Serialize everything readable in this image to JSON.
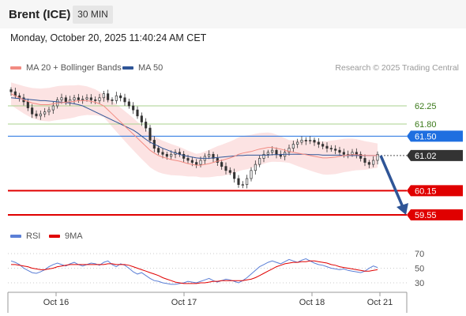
{
  "header": {
    "instrument": "Brent (ICE)",
    "timeframe": "30 MIN"
  },
  "datetime": "Monday, October 20, 2025 11:40:24 AM CET",
  "research": "Research © 2025 Trading Central",
  "legend": {
    "ma20": {
      "label": "MA 20 + Bollinger Bands",
      "color": "#f28b82"
    },
    "ma50": {
      "label": "MA 50",
      "color": "#2f5597"
    },
    "rsi": {
      "label": "RSI",
      "color": "#5b7fd6"
    },
    "ma9": {
      "label": "9MA",
      "color": "#e00000"
    }
  },
  "chart_data": [
    {
      "type": "candlestick",
      "title": "",
      "x_ticks": [
        "Oct 16",
        "Oct 17",
        "Oct 18",
        "Oct 21"
      ],
      "levels": [
        {
          "value": 62.25,
          "label": "62.25",
          "kind": "resistance",
          "color": "#a8d08d"
        },
        {
          "value": 61.8,
          "label": "61.80",
          "kind": "resistance",
          "color": "#a8d08d"
        },
        {
          "value": 61.5,
          "label": "61.50",
          "kind": "pivot",
          "color": "#1f6fe0"
        },
        {
          "value": 61.02,
          "label": "61.02",
          "kind": "last-price",
          "color": "#333333"
        },
        {
          "value": 60.15,
          "label": "60.15",
          "kind": "support",
          "color": "#e00000"
        },
        {
          "value": 59.55,
          "label": "59.55",
          "kind": "support",
          "color": "#e00000"
        }
      ],
      "ylim": [
        59.55,
        62.8
      ],
      "closes": [
        62.6,
        62.5,
        62.45,
        62.35,
        62.2,
        62.05,
        62.0,
        62.05,
        62.1,
        62.15,
        62.25,
        62.4,
        62.45,
        62.35,
        62.4,
        62.45,
        62.4,
        62.42,
        62.45,
        62.4,
        62.38,
        62.45,
        62.55,
        62.4,
        62.38,
        62.5,
        62.45,
        62.35,
        62.25,
        62.15,
        62.0,
        61.85,
        61.7,
        61.4,
        61.2,
        61.1,
        61.05,
        61.0,
        61.05,
        61.1,
        61.05,
        60.95,
        60.9,
        60.85,
        60.8,
        60.9,
        61.0,
        61.05,
        60.95,
        60.85,
        60.75,
        60.65,
        60.6,
        60.45,
        60.3,
        60.3,
        60.45,
        60.65,
        60.8,
        60.95,
        61.05,
        61.1,
        61.15,
        61.05,
        61.0,
        61.1,
        61.2,
        61.3,
        61.35,
        61.4,
        61.38,
        61.4,
        61.35,
        61.3,
        61.25,
        61.2,
        61.18,
        61.15,
        61.1,
        61.05,
        61.05,
        61.1,
        61.05,
        60.95,
        60.85,
        60.8,
        60.9,
        61.05
      ],
      "ma20": [
        62.55,
        62.5,
        62.45,
        62.4,
        62.36,
        62.32,
        62.3,
        62.28,
        62.28,
        62.28,
        62.3,
        62.32,
        62.33,
        62.34,
        62.35,
        62.36,
        62.38,
        62.38,
        62.38,
        62.36,
        62.34,
        62.3,
        62.25,
        62.15,
        62.05,
        61.95,
        61.85,
        61.75,
        61.65,
        61.55,
        61.45,
        61.35,
        61.25,
        61.15,
        61.08,
        61.02,
        60.98,
        60.95,
        60.92,
        60.9,
        60.88,
        60.85,
        60.82,
        60.8,
        60.78,
        60.78,
        60.8,
        60.82,
        60.85,
        60.88,
        60.9,
        60.93,
        60.96,
        61.0,
        61.05,
        61.08,
        61.1,
        61.12,
        61.15,
        61.18,
        61.2,
        61.22,
        61.22,
        61.2,
        61.18,
        61.15,
        61.12,
        61.1,
        61.08,
        61.06,
        61.04,
        61.02,
        61.0,
        60.98,
        60.96,
        60.96,
        60.97,
        60.98,
        61.0,
        61.02,
        61.03,
        61.04,
        61.04,
        61.03,
        61.02,
        61.02,
        61.02,
        61.02
      ],
      "ma50": [
        62.45,
        62.44,
        62.43,
        62.42,
        62.41,
        62.4,
        62.39,
        62.38,
        62.38,
        62.37,
        62.36,
        62.35,
        62.34,
        62.33,
        62.32,
        62.3,
        62.28,
        62.25,
        62.2,
        62.15,
        62.1,
        62.05,
        62.0,
        61.95,
        61.9,
        61.85,
        61.8,
        61.75,
        61.7,
        61.65,
        61.58,
        61.5,
        61.42,
        61.35,
        61.3,
        61.25,
        61.2,
        61.16,
        61.12,
        61.08,
        61.05,
        61.02,
        61.0,
        60.98,
        60.96,
        60.95,
        60.95,
        60.95,
        60.96,
        60.97,
        60.98,
        60.99,
        61.0,
        61.01,
        61.02,
        61.02,
        61.03,
        61.03,
        61.03,
        61.03,
        61.03,
        61.03,
        61.04,
        61.04,
        61.04,
        61.05,
        61.05,
        61.05,
        61.05,
        61.05,
        61.05,
        61.04,
        61.04,
        61.04,
        61.03,
        61.03,
        61.03,
        61.03,
        61.03,
        61.02,
        61.02,
        61.02,
        61.02,
        61.02,
        61.02,
        61.02,
        61.02,
        61.02
      ]
    },
    {
      "type": "line",
      "title": "",
      "ylim": [
        25,
        75
      ],
      "y_ticks": [
        "70",
        "50",
        "30"
      ],
      "rsi": [
        60,
        58,
        55,
        50,
        47,
        44,
        43,
        45,
        48,
        52,
        55,
        57,
        55,
        53,
        56,
        58,
        55,
        53,
        55,
        57,
        56,
        54,
        58,
        60,
        55,
        52,
        56,
        54,
        50,
        45,
        42,
        44,
        40,
        36,
        33,
        32,
        30,
        29,
        28,
        28,
        29,
        30,
        32,
        31,
        30,
        32,
        34,
        36,
        33,
        31,
        33,
        35,
        34,
        32,
        30,
        33,
        37,
        42,
        47,
        52,
        55,
        58,
        60,
        58,
        56,
        59,
        62,
        60,
        58,
        61,
        63,
        60,
        57,
        55,
        54,
        52,
        50,
        49,
        48,
        49,
        47,
        46,
        45,
        44,
        46,
        50,
        53,
        51
      ],
      "ma9": [
        55,
        55,
        54,
        53,
        52,
        50,
        49,
        48,
        48,
        49,
        50,
        52,
        53,
        54,
        55,
        55,
        55,
        55,
        55,
        55,
        55,
        55,
        55,
        56,
        56,
        55,
        55,
        55,
        54,
        52,
        50,
        48,
        46,
        44,
        42,
        40,
        37,
        35,
        33,
        31,
        30,
        29,
        29,
        29,
        29,
        30,
        30,
        31,
        32,
        32,
        33,
        33,
        33,
        33,
        33,
        33,
        34,
        35,
        37,
        40,
        43,
        46,
        49,
        52,
        54,
        56,
        57,
        58,
        58,
        59,
        59,
        60,
        60,
        59,
        58,
        57,
        55,
        54,
        52,
        51,
        50,
        49,
        48,
        47,
        46,
        46,
        47,
        48
      ]
    }
  ]
}
